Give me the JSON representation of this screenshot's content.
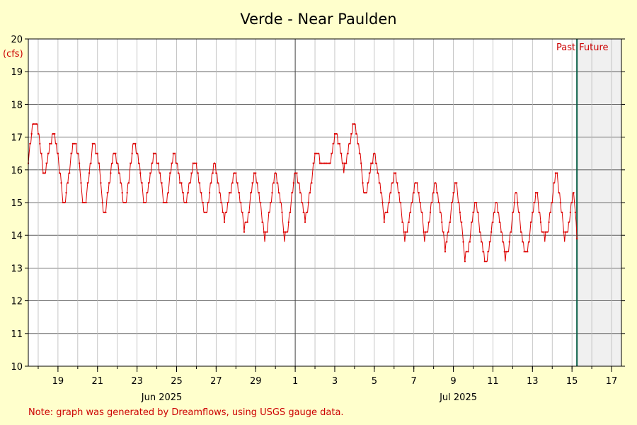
{
  "chart_data": {
    "type": "line",
    "title": "Verde - Near Paulden",
    "ylabel": "(cfs)",
    "ylim": [
      10,
      20
    ],
    "y_ticks": [
      10,
      11,
      12,
      13,
      14,
      15,
      16,
      17,
      18,
      19,
      20
    ],
    "x_range": [
      "2025-06-17T12:00",
      "2025-07-17T12:00"
    ],
    "x_tick_labels": [
      "19",
      "21",
      "23",
      "25",
      "27",
      "29",
      "1",
      "3",
      "5",
      "7",
      "9",
      "11",
      "13",
      "15",
      "17"
    ],
    "month_labels": [
      "Jun 2025",
      "Jul 2025"
    ],
    "now": "2025-07-15T06:00",
    "past_label": "Past",
    "future_label": "Future",
    "grid": true,
    "line_color": "#DD0000",
    "series": [
      {
        "points": [
          [
            "2025-06-17T12:00",
            16.3
          ],
          [
            "2025-06-17T18:00",
            17.5
          ],
          [
            "2025-06-18T00:00",
            17.2
          ],
          [
            "2025-06-18T06:00",
            16.0
          ],
          [
            "2025-06-18T09:00",
            16.0
          ],
          [
            "2025-06-18T18:00",
            17.2
          ],
          [
            "2025-06-19T00:00",
            16.5
          ],
          [
            "2025-06-19T06:00",
            15.1
          ],
          [
            "2025-06-19T09:00",
            15.1
          ],
          [
            "2025-06-19T19:00",
            16.9
          ],
          [
            "2025-06-20T01:00",
            16.4
          ],
          [
            "2025-06-20T06:00",
            15.1
          ],
          [
            "2025-06-20T10:00",
            15.1
          ],
          [
            "2025-06-20T19:00",
            16.9
          ],
          [
            "2025-06-21T01:00",
            16.3
          ],
          [
            "2025-06-21T07:00",
            14.8
          ],
          [
            "2025-06-21T10:00",
            14.8
          ],
          [
            "2025-06-21T20:00",
            16.6
          ],
          [
            "2025-06-22T02:00",
            16.0
          ],
          [
            "2025-06-22T07:00",
            15.1
          ],
          [
            "2025-06-22T11:00",
            15.1
          ],
          [
            "2025-06-22T20:00",
            16.9
          ],
          [
            "2025-06-23T02:00",
            16.3
          ],
          [
            "2025-06-23T08:00",
            15.1
          ],
          [
            "2025-06-23T11:00",
            15.1
          ],
          [
            "2025-06-23T21:00",
            16.6
          ],
          [
            "2025-06-24T03:00",
            16.0
          ],
          [
            "2025-06-24T08:00",
            15.1
          ],
          [
            "2025-06-24T12:00",
            15.1
          ],
          [
            "2025-06-24T21:00",
            16.6
          ],
          [
            "2025-06-25T03:00",
            15.8
          ],
          [
            "2025-06-25T09:00",
            15.1
          ],
          [
            "2025-06-25T12:00",
            15.1
          ],
          [
            "2025-06-25T22:00",
            16.3
          ],
          [
            "2025-06-26T04:00",
            15.6
          ],
          [
            "2025-06-26T09:00",
            14.8
          ],
          [
            "2025-06-26T13:00",
            14.8
          ],
          [
            "2025-06-26T22:00",
            16.3
          ],
          [
            "2025-06-27T04:00",
            15.4
          ],
          [
            "2025-06-27T10:00",
            14.5
          ],
          [
            "2025-06-27T13:00",
            14.8
          ],
          [
            "2025-06-27T23:00",
            16.0
          ],
          [
            "2025-06-28T05:00",
            15.1
          ],
          [
            "2025-06-28T10:00",
            14.2
          ],
          [
            "2025-06-28T14:00",
            14.5
          ],
          [
            "2025-06-28T23:00",
            16.0
          ],
          [
            "2025-06-29T05:00",
            15.1
          ],
          [
            "2025-06-29T11:00",
            13.9
          ],
          [
            "2025-06-29T14:00",
            14.2
          ],
          [
            "2025-06-30T00:00",
            16.0
          ],
          [
            "2025-06-30T06:00",
            15.1
          ],
          [
            "2025-06-30T11:00",
            13.9
          ],
          [
            "2025-06-30T15:00",
            14.2
          ],
          [
            "2025-07-01T00:00",
            16.0
          ],
          [
            "2025-07-01T06:00",
            15.4
          ],
          [
            "2025-07-01T12:00",
            14.5
          ],
          [
            "2025-07-01T15:00",
            14.8
          ],
          [
            "2025-07-02T01:00",
            16.6
          ],
          [
            "2025-07-02T06:00",
            16.3
          ],
          [
            "2025-07-02T12:00",
            16.3
          ],
          [
            "2025-07-02T19:00",
            16.3
          ],
          [
            "2025-07-03T01:00",
            17.2
          ],
          [
            "2025-07-03T07:00",
            16.6
          ],
          [
            "2025-07-03T11:00",
            16.0
          ],
          [
            "2025-07-03T14:00",
            16.3
          ],
          [
            "2025-07-04T00:00",
            17.5
          ],
          [
            "2025-07-04T06:00",
            16.6
          ],
          [
            "2025-07-04T11:00",
            15.4
          ],
          [
            "2025-07-04T15:00",
            15.4
          ],
          [
            "2025-07-05T00:00",
            16.6
          ],
          [
            "2025-07-05T07:00",
            15.6
          ],
          [
            "2025-07-05T12:00",
            14.5
          ],
          [
            "2025-07-05T16:00",
            14.8
          ],
          [
            "2025-07-06T01:00",
            16.0
          ],
          [
            "2025-07-06T07:00",
            15.1
          ],
          [
            "2025-07-06T13:00",
            13.9
          ],
          [
            "2025-07-06T16:00",
            14.2
          ],
          [
            "2025-07-07T02:00",
            15.7
          ],
          [
            "2025-07-07T08:00",
            15.0
          ],
          [
            "2025-07-07T13:00",
            13.9
          ],
          [
            "2025-07-07T17:00",
            14.2
          ],
          [
            "2025-07-08T02:00",
            15.7
          ],
          [
            "2025-07-08T08:00",
            14.8
          ],
          [
            "2025-07-08T14:00",
            13.6
          ],
          [
            "2025-07-08T17:00",
            14.0
          ],
          [
            "2025-07-09T03:00",
            15.7
          ],
          [
            "2025-07-09T09:00",
            14.5
          ],
          [
            "2025-07-09T14:00",
            13.3
          ],
          [
            "2025-07-09T18:00",
            13.6
          ],
          [
            "2025-07-10T03:00",
            15.1
          ],
          [
            "2025-07-10T09:00",
            14.0
          ],
          [
            "2025-07-10T15:00",
            13.1
          ],
          [
            "2025-07-10T18:00",
            13.4
          ],
          [
            "2025-07-11T04:00",
            15.1
          ],
          [
            "2025-07-11T10:00",
            14.2
          ],
          [
            "2025-07-11T15:00",
            13.3
          ],
          [
            "2025-07-11T19:00",
            13.6
          ],
          [
            "2025-07-12T04:00",
            15.4
          ],
          [
            "2025-07-12T10:00",
            14.2
          ],
          [
            "2025-07-12T14:00",
            13.6
          ],
          [
            "2025-07-12T18:00",
            13.6
          ],
          [
            "2025-07-13T05:00",
            15.4
          ],
          [
            "2025-07-13T11:00",
            14.2
          ],
          [
            "2025-07-13T15:00",
            13.9
          ],
          [
            "2025-07-13T19:00",
            14.2
          ],
          [
            "2025-07-14T05:00",
            16.0
          ],
          [
            "2025-07-14T11:00",
            14.8
          ],
          [
            "2025-07-14T15:00",
            13.9
          ],
          [
            "2025-07-14T19:00",
            14.2
          ],
          [
            "2025-07-15T02:00",
            15.4
          ],
          [
            "2025-07-15T06:00",
            13.9
          ]
        ]
      }
    ]
  },
  "note": "Note: graph was generated by Dreamflows, using USGS gauge data."
}
